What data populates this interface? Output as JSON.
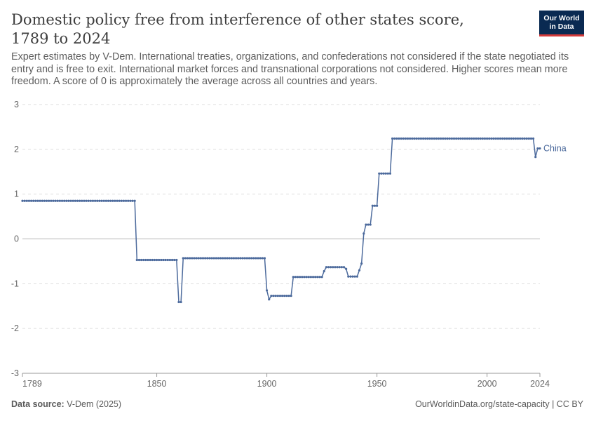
{
  "header": {
    "title": "Domestic policy free from interference of other states score, 1789 to 2024",
    "subtitle": "Expert estimates by V-Dem. International treaties, organizations, and confederations not considered if the state negotiated its entry and is free to exit. International market forces and transnational corporations not considered. Higher scores mean more freedom. A score of 0 is approximately the average across all countries and years.",
    "logo_line1": "Our World",
    "logo_line2": "in Data"
  },
  "footer": {
    "source_label": "Data source:",
    "source_value": "V-Dem (2025)",
    "url_license": "OurWorldinData.org/state-capacity | CC BY"
  },
  "colors": {
    "series": "#4c6a9c",
    "grid": "#dddddd",
    "zero_line": "#b5b5b5",
    "logo_bg": "#0a2a52",
    "logo_accent": "#d43a3a"
  },
  "chart_data": {
    "type": "line",
    "title": "Domestic policy free from interference of other states score, 1789 to 2024",
    "xlabel": "",
    "ylabel": "",
    "xlim": [
      1789,
      2024
    ],
    "ylim": [
      -3,
      3
    ],
    "x_ticks": [
      1789,
      1850,
      1900,
      1950,
      2000,
      2024
    ],
    "y_ticks": [
      3,
      2,
      1,
      0,
      -1,
      -2,
      -3
    ],
    "grid": true,
    "legend": "inline label at line end (right)",
    "series": [
      {
        "name": "China",
        "segments": [
          [
            1789,
            1840,
            0.85
          ],
          [
            1841,
            1859,
            -0.47
          ],
          [
            1860,
            1861,
            -1.41
          ],
          [
            1862,
            1899,
            -0.43
          ],
          [
            1900,
            1900,
            -1.15
          ],
          [
            1901,
            1901,
            -1.35
          ],
          [
            1902,
            1911,
            -1.27
          ],
          [
            1912,
            1925,
            -0.85
          ],
          [
            1926,
            1926,
            -0.72
          ],
          [
            1927,
            1935,
            -0.63
          ],
          [
            1936,
            1936,
            -0.67
          ],
          [
            1937,
            1941,
            -0.84
          ],
          [
            1942,
            1942,
            -0.7
          ],
          [
            1943,
            1943,
            -0.55
          ],
          [
            1944,
            1944,
            0.12
          ],
          [
            1945,
            1947,
            0.32
          ],
          [
            1948,
            1950,
            0.74
          ],
          [
            1951,
            1956,
            1.46
          ],
          [
            1957,
            2021,
            2.24
          ],
          [
            2022,
            2022,
            1.83
          ],
          [
            2023,
            2024,
            2.02
          ]
        ]
      }
    ]
  }
}
